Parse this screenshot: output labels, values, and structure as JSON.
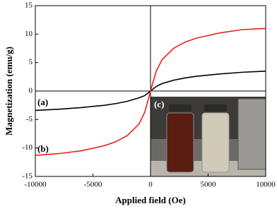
{
  "chart_data": {
    "type": "line",
    "x_label": "Applied field (Oe)",
    "y_label": "Magnetization (emu/g)",
    "x": [
      -10000,
      -8000,
      -6000,
      -4000,
      -3000,
      -2000,
      -1000,
      -500,
      -250,
      0,
      250,
      500,
      1000,
      2000,
      3000,
      4000,
      6000,
      8000,
      10000
    ],
    "series": [
      {
        "color": "#000000",
        "values": [
          -3.4,
          -3.2,
          -2.9,
          -2.5,
          -2.2,
          -1.8,
          -1.2,
          -0.8,
          -0.4,
          0,
          0.4,
          0.8,
          1.3,
          1.9,
          2.3,
          2.6,
          3.0,
          3.3,
          3.5
        ]
      },
      {
        "color": "#e8201c",
        "values": [
          -11.3,
          -11.0,
          -10.5,
          -9.6,
          -8.9,
          -7.8,
          -5.8,
          -3.7,
          -1.9,
          0,
          1.8,
          3.5,
          5.5,
          7.5,
          8.6,
          9.3,
          10.2,
          10.8,
          11.0
        ]
      }
    ],
    "annotations": [
      "(a)",
      "(b)",
      "(c)"
    ],
    "xlim": [
      -10000,
      10000
    ],
    "xticks": [
      -10000,
      -5000,
      0,
      5000,
      10000
    ],
    "ylim": [
      -15,
      15
    ],
    "yticks": [
      -15,
      -10,
      -5,
      0,
      5,
      10,
      15
    ]
  }
}
